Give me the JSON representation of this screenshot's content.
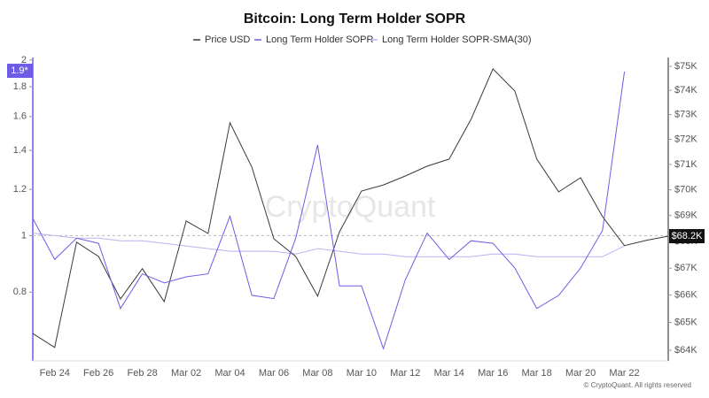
{
  "chart_data": {
    "type": "line",
    "title": "Bitcoin: Long Term Holder SOPR",
    "watermark": "CryptoQuant",
    "footer": "© CryptoQuant. All rights reserved",
    "categories": [
      null,
      "Feb 24",
      null,
      "Feb 26",
      null,
      "Feb 28",
      null,
      "Mar 02",
      null,
      "Mar 04",
      null,
      "Mar 06",
      null,
      "Mar 08",
      null,
      "Mar 10",
      null,
      "Mar 12",
      null,
      "Mar 14",
      null,
      "Mar 16",
      null,
      "Mar 18",
      null,
      "Mar 20",
      null,
      "Mar 22",
      null,
      null
    ],
    "series": [
      {
        "name": "Price USD",
        "color": "#3a3a3a",
        "axis": "y2",
        "last_label": "$68.2K",
        "values": [
          64600,
          64100,
          67980,
          67440,
          65860,
          66980,
          65760,
          68790,
          68310,
          72670,
          70890,
          68110,
          67440,
          65960,
          68380,
          69950,
          70190,
          70540,
          70930,
          71210,
          72810,
          74890,
          73970,
          71210,
          69920,
          70470,
          68960,
          67850,
          68050,
          68210
        ]
      },
      {
        "name": "Long Term Holder SOPR",
        "color": "#6f5ce6",
        "last_label": "1.9*",
        "values": [
          1.07,
          0.91,
          0.99,
          0.97,
          0.75,
          0.86,
          0.83,
          0.85,
          0.86,
          1.08,
          0.79,
          0.78,
          0.99,
          1.43,
          0.82,
          0.82,
          0.64,
          0.84,
          1.01,
          0.91,
          0.98,
          0.97,
          0.88,
          0.75,
          0.79,
          0.88,
          1.02,
          1.91,
          null,
          null
        ]
      },
      {
        "name": "Long Term Holder SOPR-SMA(30)",
        "color": "#b8b2f2",
        "values": [
          1.01,
          1.0,
          0.99,
          0.99,
          0.98,
          0.98,
          0.97,
          0.96,
          0.95,
          0.94,
          0.94,
          0.94,
          0.93,
          0.95,
          0.94,
          0.93,
          0.93,
          0.92,
          0.92,
          0.92,
          0.92,
          0.93,
          0.93,
          0.92,
          0.92,
          0.92,
          0.92,
          0.96,
          null,
          null
        ]
      }
    ],
    "log_scale": true,
    "ylim": [
      0.61,
      2.02
    ],
    "yticks": [
      0.8,
      1,
      1.2,
      1.4,
      1.6,
      1.8,
      2
    ],
    "y2lim": [
      63620,
      75370
    ],
    "y2ticks": [
      {
        "value": 64000,
        "label": "$64K"
      },
      {
        "value": 65000,
        "label": "$65K"
      },
      {
        "value": 66000,
        "label": "$66K"
      },
      {
        "value": 67000,
        "label": "$67K"
      },
      {
        "value": 68000,
        "label": "$68K"
      },
      {
        "value": 69000,
        "label": "$69K"
      },
      {
        "value": 70000,
        "label": "$70K"
      },
      {
        "value": 71000,
        "label": "$71K"
      },
      {
        "value": 72000,
        "label": "$72K"
      },
      {
        "value": 73000,
        "label": "$73K"
      },
      {
        "value": 74000,
        "label": "$74K"
      },
      {
        "value": 75000,
        "label": "$75K"
      }
    ],
    "reference_line": 1
  }
}
